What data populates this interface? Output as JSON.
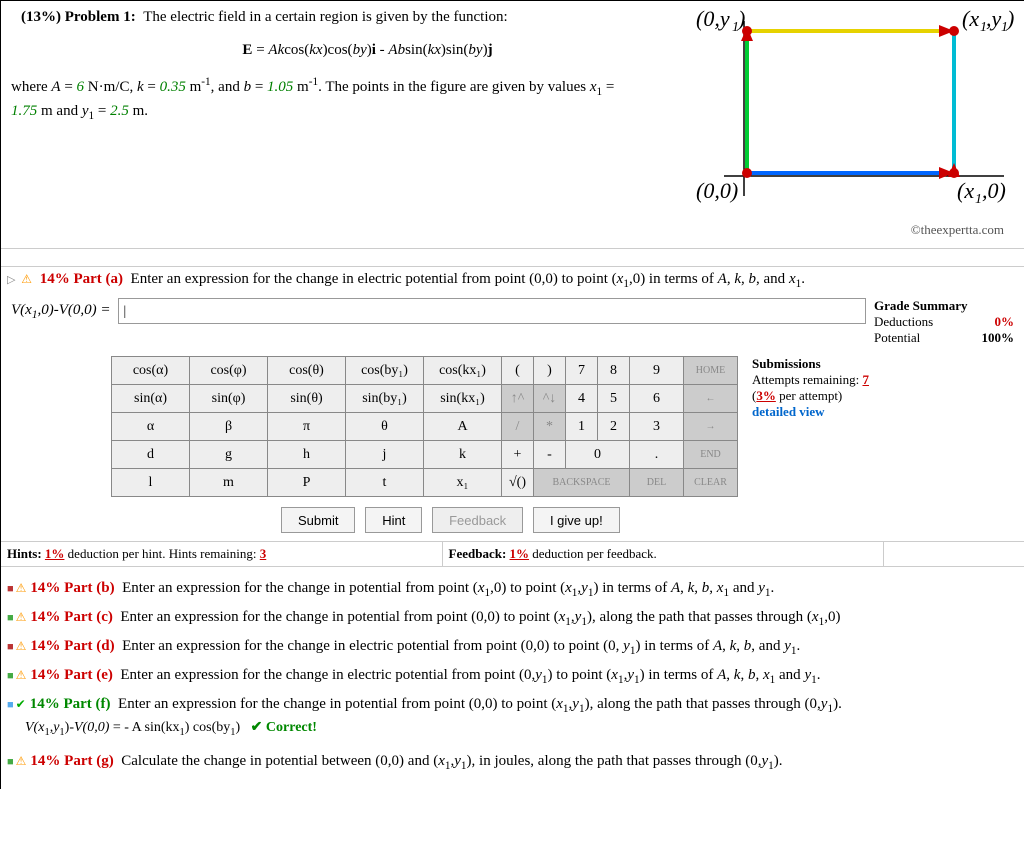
{
  "problem": {
    "percent": "(13%)",
    "label": "Problem 1:",
    "intro": "The electric field in a certain region is given by the function:",
    "equation_html": "<b>E</b> = <i>Ak</i>cos(<i>kx</i>)cos(<i>by</i>)<b>i</b> - <i>Ab</i>sin(<i>kx</i>)sin(<i>by</i>)<b>j</b>",
    "where_html": "where <i>A</i> = <span class='val-green'>6</span> N·m/C, <i>k</i> = <span class='val-green'>0.35</span> m<sup>-1</sup>, and <i>b</i> = <span class='val-green'>1.05</span> m<sup>-1</sup>. The points in the figure are given by values <i>x</i><sub>1</sub> = <span class='val-green'>1.75</span> m and <i>y</i><sub>1</sub> = <span class='val-green'>2.5</span> m.",
    "caption": "©theexpertta.com"
  },
  "diagram": {
    "labels": {
      "tl": "(0,y₁)",
      "tr": "(x₁,y₁)",
      "bl": "(0,0)",
      "br": "(x₁,0)"
    },
    "colors": {
      "top": "#e6d200",
      "right": "#00bcd4",
      "bottom": "#0066ff",
      "left": "#00cc33",
      "arrow": "#cc0000",
      "dot": "#cc0000"
    }
  },
  "part_a": {
    "header_html": "<span class='part-label'>14% Part (a)</span>&nbsp; Enter an expression for the change in electric potential from point (0,0) to point (<i>x</i><sub>1</sub>,0) in terms of <i>A</i>, <i>k</i>, <i>b</i>, and <i>x</i><sub>1</sub>.",
    "answer_label": "V(x₁,0)-V(0,0) =",
    "answer_value": "|"
  },
  "grade_summary": {
    "title": "Grade Summary",
    "deductions_label": "Deductions",
    "deductions_value": "0%",
    "potential_label": "Potential",
    "potential_value": "100%"
  },
  "submissions": {
    "title": "Submissions",
    "attempts_label": "Attempts remaining:",
    "attempts_value": "7",
    "per_attempt": "(3% per attempt)",
    "detailed": "detailed view"
  },
  "keypad": {
    "rows": [
      [
        "cos(α)",
        "cos(φ)",
        "cos(θ)",
        "cos(by₁)",
        "cos(kx₁)",
        "(",
        ")",
        "7",
        "8",
        "9",
        "HOME"
      ],
      [
        "sin(α)",
        "sin(φ)",
        "sin(θ)",
        "sin(by₁)",
        "sin(kx₁)",
        "↑^",
        "^↓",
        "4",
        "5",
        "6",
        "←"
      ],
      [
        "α",
        "β",
        "π",
        "θ",
        "A",
        "/",
        "*",
        "1",
        "2",
        "3",
        "→"
      ],
      [
        "d",
        "g",
        "h",
        "j",
        "k",
        "+",
        "-",
        "0",
        ".",
        "END",
        ""
      ],
      [
        "l",
        "m",
        "P",
        "t",
        "x₁",
        "√()",
        "BACKSPACE",
        "DEL",
        "CLEAR",
        "",
        ""
      ]
    ]
  },
  "actions": {
    "submit": "Submit",
    "hint": "Hint",
    "feedback": "Feedback",
    "giveup": "I give up!"
  },
  "hints": {
    "left_html": "<b>Hints:</b> <u class='red'>1%</u> deduction per hint. Hints remaining: <u class='red'>3</u>",
    "right_html": "<b>Feedback:</b> <u class='red'>1%</u> deduction per feedback."
  },
  "parts": [
    {
      "icon": "sq sq-red",
      "status": "warn",
      "label": "14% Part (b)",
      "text_html": "Enter an expression for the change in potential from point (<i>x</i><sub>1</sub>,0) to point (<i>x</i><sub>1</sub>,<i>y</i><sub>1</sub>) in terms of <i>A</i>, <i>k</i>, <i>b</i>, <i>x</i><sub>1</sub> and <i>y</i><sub>1</sub>."
    },
    {
      "icon": "sq sq-green",
      "status": "warn",
      "label": "14% Part (c)",
      "text_html": "Enter an expression for the change in potential from point (0,0) to point (<i>x</i><sub>1</sub>,<i>y</i><sub>1</sub>), along the path that passes through (<i>x</i><sub>1</sub>,0)"
    },
    {
      "icon": "sq sq-red",
      "status": "warn",
      "label": "14% Part (d)",
      "text_html": "Enter an expression for the change in electric potential from point (0,0) to point (0, <i>y</i><sub>1</sub>) in terms of <i>A</i>, <i>k</i>, <i>b</i>, and <i>y</i><sub>1</sub>."
    },
    {
      "icon": "sq sq-green",
      "status": "warn",
      "label": "14% Part (e)",
      "text_html": "Enter an expression for the change in electric potential from point (0,<i>y</i><sub>1</sub>) to point (<i>x</i><sub>1</sub>,<i>y</i><sub>1</sub>) in terms of <i>A</i>, <i>k</i>, <i>b</i>, <i>x</i><sub>1</sub> and <i>y</i><sub>1</sub>."
    },
    {
      "icon": "sq sq-blue",
      "status": "check",
      "label": "14% Part (f)",
      "label_class": "part-label-green",
      "text_html": "Enter an expression for the change in potential from point (0,0) to point (<i>x</i><sub>1</sub>,<i>y</i><sub>1</sub>), along the path that passes through (0,<i>y</i><sub>1</sub>).",
      "answer_html": "<i>V(x</i><sub>1</sub>,<i>y</i><sub>1</sub>)-<i>V(0,0)</i> = - A sin(kx<sub>1</sub>) cos(by<sub>1</sub>) &nbsp; <span style='color:#080;font-weight:bold'>✔ Correct!</span>"
    },
    {
      "icon": "sq sq-green",
      "status": "warn",
      "label": "14% Part (g)",
      "text_html": "Calculate the change in potential between (0,0) and (<i>x</i><sub>1</sub>,<i>y</i><sub>1</sub>), in joules, along the path that passes through (0,<i>y</i><sub>1</sub>).",
      "spacer_before": true
    }
  ]
}
